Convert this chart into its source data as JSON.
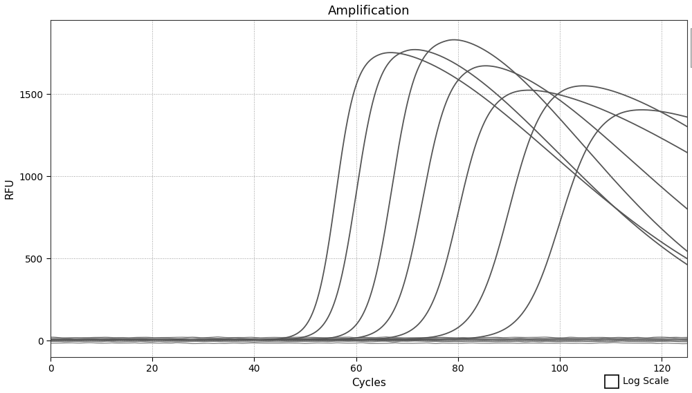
{
  "title": "Amplification",
  "xlabel": "Cycles",
  "ylabel": "RFU",
  "xlim": [
    0,
    125
  ],
  "ylim": [
    -100,
    1950
  ],
  "xticks": [
    0,
    20,
    40,
    60,
    80,
    100,
    120
  ],
  "yticks": [
    0,
    500,
    1000,
    1500
  ],
  "background_color": "#ffffff",
  "plot_bg_color": "#ffffff",
  "curve_color": "#555555",
  "flat_color": "#555555",
  "sigmoid_curves": [
    {
      "midpoint": 56,
      "L": 1760,
      "k": 0.5,
      "y0": 5,
      "decay": 0.0008,
      "decay_start": 65
    },
    {
      "midpoint": 60,
      "L": 1780,
      "k": 0.45,
      "y0": 5,
      "decay": 0.001,
      "decay_start": 70
    },
    {
      "midpoint": 67,
      "L": 1840,
      "k": 0.42,
      "y0": 5,
      "decay": 0.0012,
      "decay_start": 78
    },
    {
      "midpoint": 73,
      "L": 1690,
      "k": 0.38,
      "y0": 5,
      "decay": 0.0009,
      "decay_start": 83
    },
    {
      "midpoint": 80,
      "L": 1540,
      "k": 0.35,
      "y0": 5,
      "decay": 0.0005,
      "decay_start": 90
    },
    {
      "midpoint": 90,
      "L": 1580,
      "k": 0.3,
      "y0": 5,
      "decay": 0.0006,
      "decay_start": 100
    },
    {
      "midpoint": 100,
      "L": 1430,
      "k": 0.28,
      "y0": 5,
      "decay": 0.0004,
      "decay_start": 110
    }
  ],
  "flat_lines": [
    {
      "y_base": 20,
      "noise": 5
    },
    {
      "y_base": 10,
      "noise": 4
    },
    {
      "y_base": -15,
      "noise": 5
    },
    {
      "y_base": 5,
      "noise": 3
    },
    {
      "y_base": 15,
      "noise": 4
    },
    {
      "y_base": 0,
      "noise": 3
    },
    {
      "y_base": 8,
      "noise": 3
    },
    {
      "y_base": -5,
      "noise": 4
    }
  ],
  "logscale_label": "Log Scale",
  "title_fontsize": 13,
  "axis_label_fontsize": 11,
  "tick_fontsize": 10
}
